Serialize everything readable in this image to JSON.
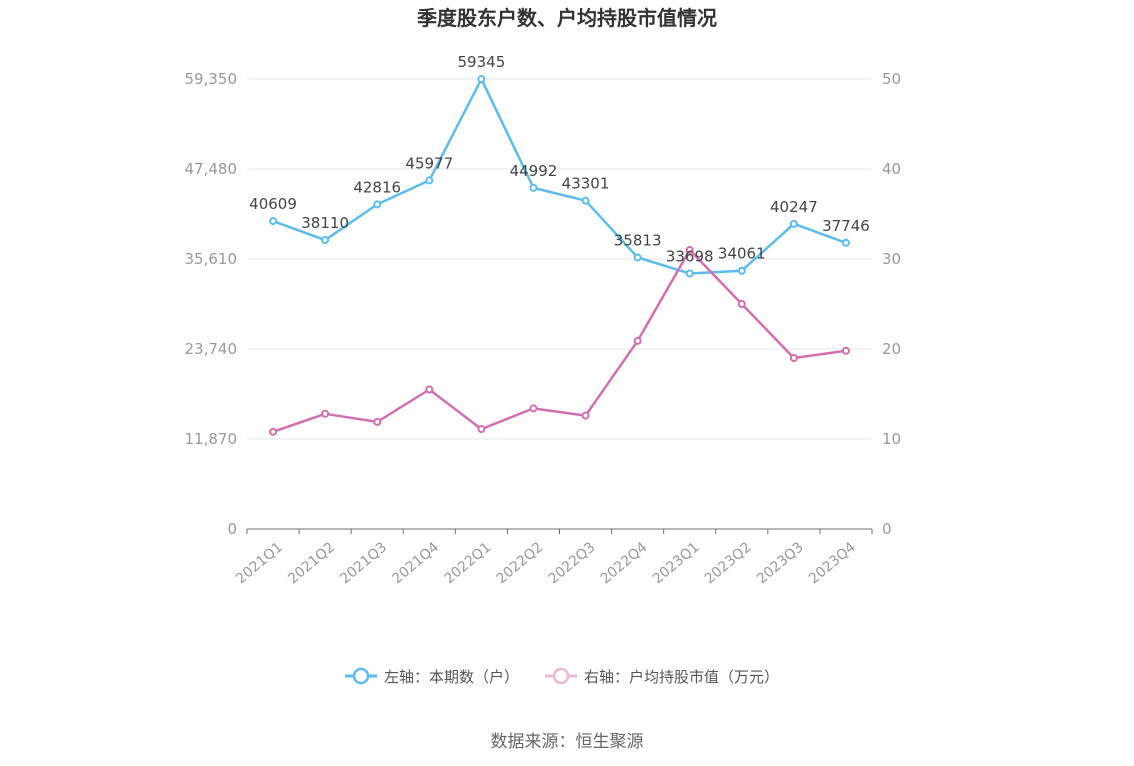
{
  "chart_data": {
    "type": "line",
    "title": "季度股东户数、户均持股市值情况",
    "categories": [
      "2021Q1",
      "2021Q2",
      "2021Q3",
      "2021Q4",
      "2022Q1",
      "2022Q2",
      "2022Q3",
      "2022Q4",
      "2023Q1",
      "2023Q2",
      "2023Q3",
      "2023Q4"
    ],
    "left_axis": {
      "ticks": [
        "0",
        "11,870",
        "23,740",
        "35,610",
        "47,480",
        "59,350"
      ],
      "ylim": [
        0,
        59350
      ]
    },
    "right_axis": {
      "ticks": [
        "0",
        "10",
        "20",
        "30",
        "40",
        "50"
      ],
      "ylim": [
        0,
        50
      ]
    },
    "series": [
      {
        "name": "左轴：本期数（户）",
        "axis": "left",
        "color": "#5bbdee",
        "values": [
          40609,
          38110,
          42816,
          45977,
          59345,
          44992,
          43301,
          35813,
          33698,
          34061,
          40247,
          37746
        ],
        "labels": [
          "40609",
          "38110",
          "42816",
          "45977",
          "59345",
          "44992",
          "43301",
          "35813",
          "33698",
          "34061",
          "40247",
          "37746"
        ]
      },
      {
        "name": "右轴：户均持股市值（万元）",
        "axis": "right",
        "color": "#d46eb3",
        "values": [
          10.8,
          12.8,
          11.9,
          15.5,
          11.1,
          13.4,
          12.6,
          20.9,
          31.0,
          25.0,
          19.0,
          19.8
        ]
      }
    ],
    "grid": true,
    "legend": "bottom-center"
  },
  "source": "数据来源：恒生聚源"
}
